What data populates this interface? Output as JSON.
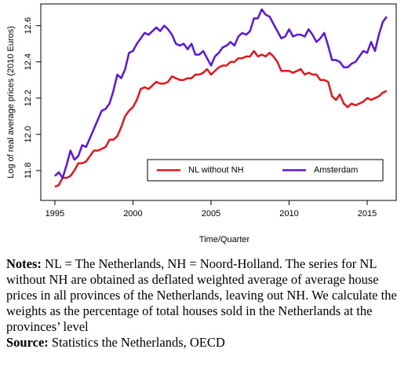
{
  "chart_data": {
    "type": "line",
    "xlabel": "Time/Quarter",
    "ylabel": "Log of real average prices (2010 Euros)",
    "x": [
      1995,
      1995.25,
      1995.5,
      1995.75,
      1996,
      1996.25,
      1996.5,
      1996.75,
      1997,
      1997.25,
      1997.5,
      1997.75,
      1998,
      1998.25,
      1998.5,
      1998.75,
      1999,
      1999.25,
      1999.5,
      1999.75,
      2000,
      2000.25,
      2000.5,
      2000.75,
      2001,
      2001.25,
      2001.5,
      2001.75,
      2002,
      2002.25,
      2002.5,
      2002.75,
      2003,
      2003.25,
      2003.5,
      2003.75,
      2004,
      2004.25,
      2004.5,
      2004.75,
      2005,
      2005.25,
      2005.5,
      2005.75,
      2006,
      2006.25,
      2006.5,
      2006.75,
      2007,
      2007.25,
      2007.5,
      2007.75,
      2008,
      2008.25,
      2008.5,
      2008.75,
      2009,
      2009.25,
      2009.5,
      2009.75,
      2010,
      2010.25,
      2010.5,
      2010.75,
      2011,
      2011.25,
      2011.5,
      2011.75,
      2012,
      2012.25,
      2012.5,
      2012.75,
      2013,
      2013.25,
      2013.5,
      2013.75,
      2014,
      2014.25,
      2014.5,
      2014.75,
      2015,
      2015.25,
      2015.5,
      2015.75,
      2016,
      2016.25
    ],
    "series": [
      {
        "name": "NL without NH",
        "color": "#e8141c",
        "values": [
          11.71,
          11.72,
          11.76,
          11.76,
          11.77,
          11.8,
          11.84,
          11.84,
          11.85,
          11.88,
          11.91,
          11.91,
          11.92,
          11.93,
          11.97,
          11.97,
          11.99,
          12.04,
          12.1,
          12.13,
          12.15,
          12.19,
          12.25,
          12.26,
          12.25,
          12.27,
          12.29,
          12.28,
          12.28,
          12.29,
          12.32,
          12.31,
          12.3,
          12.3,
          12.31,
          12.31,
          12.33,
          12.33,
          12.34,
          12.36,
          12.33,
          12.35,
          12.37,
          12.38,
          12.38,
          12.4,
          12.4,
          12.42,
          12.42,
          12.43,
          12.43,
          12.46,
          12.43,
          12.44,
          12.43,
          12.45,
          12.43,
          12.4,
          12.35,
          12.35,
          12.35,
          12.34,
          12.35,
          12.36,
          12.33,
          12.34,
          12.33,
          12.33,
          12.3,
          12.3,
          12.29,
          12.21,
          12.19,
          12.22,
          12.17,
          12.15,
          12.17,
          12.16,
          12.17,
          12.18,
          12.2,
          12.19,
          12.2,
          12.21,
          12.23,
          12.24
        ]
      },
      {
        "name": "Amsterdam",
        "color": "#5a14e6",
        "values": [
          11.77,
          11.79,
          11.76,
          11.83,
          11.91,
          11.86,
          11.88,
          11.94,
          11.93,
          11.98,
          12.03,
          12.08,
          12.13,
          12.14,
          12.17,
          12.24,
          12.33,
          12.31,
          12.36,
          12.45,
          12.46,
          12.5,
          12.53,
          12.56,
          12.55,
          12.57,
          12.59,
          12.57,
          12.6,
          12.58,
          12.55,
          12.5,
          12.49,
          12.5,
          12.47,
          12.5,
          12.44,
          12.44,
          12.46,
          12.42,
          12.38,
          12.43,
          12.45,
          12.48,
          12.49,
          12.51,
          12.49,
          12.54,
          12.56,
          12.55,
          12.57,
          12.64,
          12.64,
          12.69,
          12.66,
          12.65,
          12.61,
          12.57,
          12.53,
          12.54,
          12.58,
          12.54,
          12.55,
          12.55,
          12.54,
          12.58,
          12.55,
          12.51,
          12.53,
          12.56,
          12.49,
          12.41,
          12.41,
          12.4,
          12.37,
          12.37,
          12.39,
          12.4,
          12.43,
          12.46,
          12.45,
          12.51,
          12.46,
          12.55,
          12.62,
          12.65
        ]
      }
    ],
    "xlim": [
      1994.1,
      2016.86
    ],
    "xticks": [
      1995,
      2000,
      2005,
      2010,
      2015
    ],
    "ylim": [
      11.635,
      12.72
    ],
    "yticks": [
      11.8,
      {
        "value": 12,
        "label": "12.0"
      },
      12.2,
      12.4,
      12.6
    ],
    "grid": false,
    "legend": "bottom-right"
  },
  "notes": {
    "label": "Notes:",
    "text": "NL = The Netherlands, NH = Noord-Holland. The series for NL without NH are obtained as deflated weighted average of average house prices in all provinces of the Netherlands, leaving out NH. We calculate the weights as the percentage of total houses sold in the Netherlands at the provinces’ level"
  },
  "source": {
    "label": "Source:",
    "text": "Statistics the Netherlands, OECD"
  }
}
